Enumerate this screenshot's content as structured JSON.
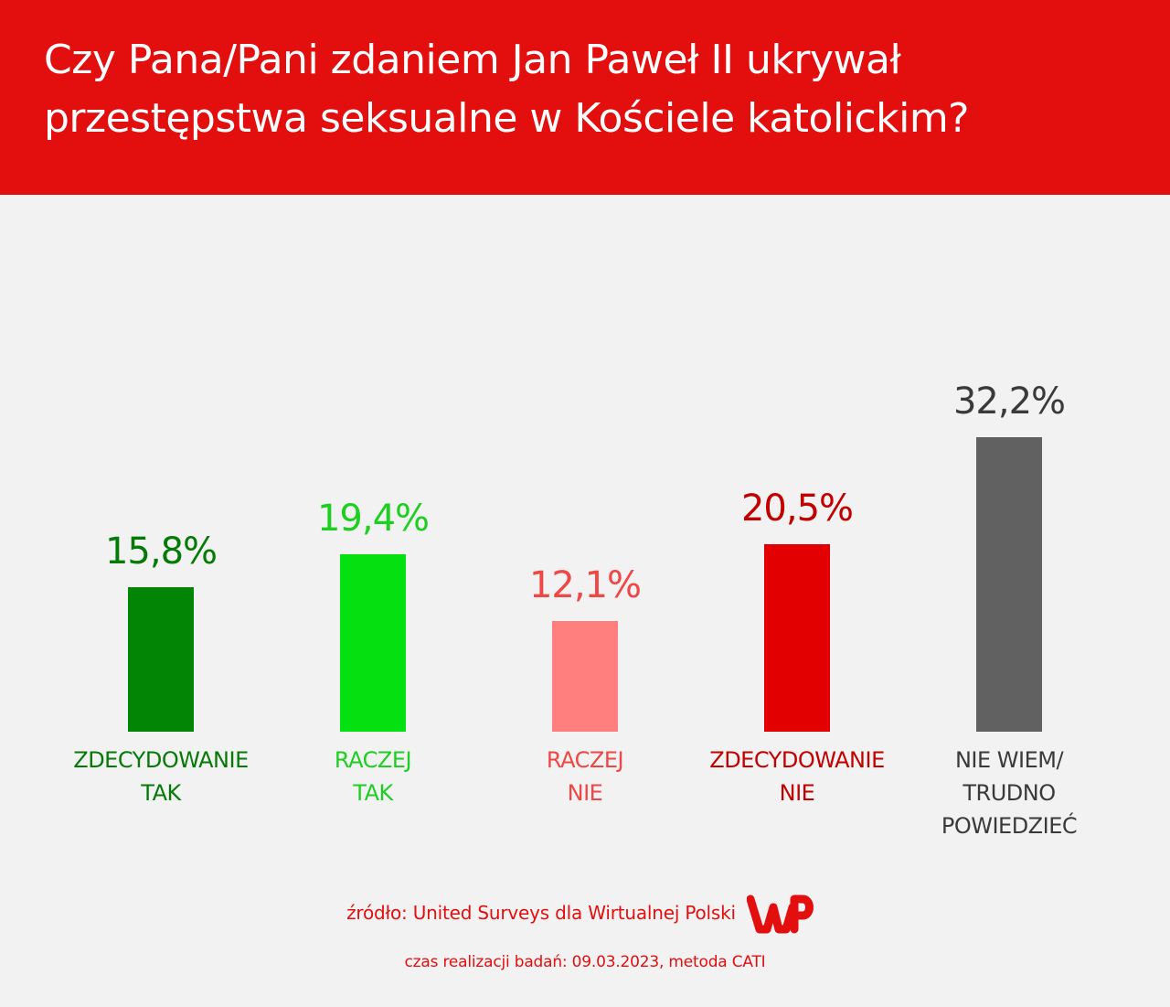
{
  "header": {
    "title": "Czy Pana/Pani zdaniem Jan Paweł II ukrywał przestępstwa seksualne w Kościele katolickim?"
  },
  "chart_data": {
    "type": "bar",
    "title": "Czy Pana/Pani zdaniem Jan Paweł II ukrywał przestępstwa seksualne w Kościele katolickim?",
    "categories": [
      [
        "ZDECYDOWANIE",
        "TAK"
      ],
      [
        "RACZEJ",
        "TAK"
      ],
      [
        "RACZEJ",
        "NIE"
      ],
      [
        "ZDECYDOWANIE",
        "NIE"
      ],
      [
        "NIE WIEM/",
        "TRUDNO",
        "POWIEDZIEĆ"
      ]
    ],
    "values": [
      15.8,
      19.4,
      12.1,
      20.5,
      32.2
    ],
    "value_labels": [
      "15,8%",
      "19,4%",
      "12,1%",
      "20,5%",
      "32,2%"
    ],
    "unit": "%",
    "ylim": [
      0,
      100
    ],
    "grid": false,
    "legend": "none",
    "colors": {
      "bars": [
        "#028504",
        "#05e010",
        "#ff7f7f",
        "#e30000",
        "#616161"
      ],
      "labels": [
        "#057a07",
        "#1ecf21",
        "#ef4646",
        "#c20000",
        "#3a3a3a"
      ]
    }
  },
  "footer": {
    "source": "źródło: United Surveys dla Wirtualnej Polski",
    "logo_icon": "wp-logo-icon",
    "date_method": "czas realizacji badań: 09.03.2023, metoda CATI"
  }
}
